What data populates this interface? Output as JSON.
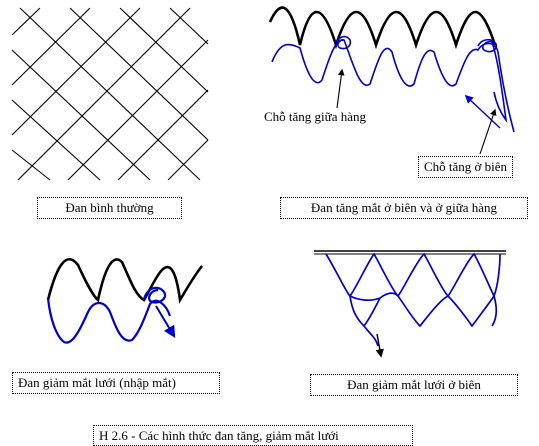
{
  "labels": {
    "normal": "Đan bình thường",
    "increase_middle": "Chỗ tăng giữa hàng",
    "increase_edge": "Chỗ tăng ở biên",
    "increase_caption": "Đan tăng mắt ở biên và ở giữa hàng",
    "decrease_merge": "Đan giảm mắt lưới (nhập mắt)",
    "decrease_edge": "Đan giảm mắt lưới ở biên",
    "figure_caption": "H 2.6 - Các hình thức đan tăng, giảm mắt lưới"
  },
  "colors": {
    "mesh": "#000000",
    "new_row": "#0000cc",
    "old_row": "#000000"
  }
}
